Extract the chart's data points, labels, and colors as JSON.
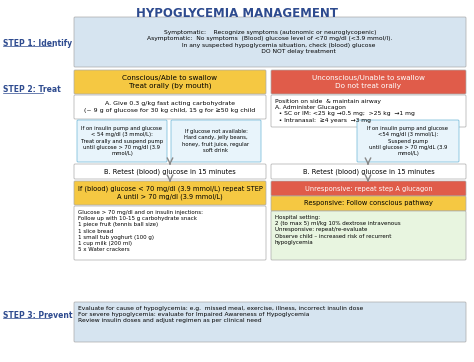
{
  "title": "HYPOGLYCEMIA MANAGEMENT",
  "title_color": "#2E4B8F",
  "bg_color": "#FFFFFF",
  "step1_label": "STEP 1: Identify",
  "step2_label": "STEP 2: Treat",
  "step3_label": "STEP 3: Prevent",
  "step_label_color": "#2E4B8F",
  "identify_bg": "#D6E4F0",
  "conscious_bg": "#F5C842",
  "unconscious_bg": "#E05C4A",
  "note_bg": "#E8F4FB",
  "note_border": "#6BB5D6",
  "repeat_bg": "#F5C842",
  "unresponsive_bg": "#E05C4A",
  "responsive_bg": "#F5C842",
  "hospital_bg": "#E8F5E0",
  "prevent_bg": "#D6E4F0",
  "box_border": "#AAAAAA",
  "arrow_color": "#888888",
  "white": "#FFFFFF"
}
